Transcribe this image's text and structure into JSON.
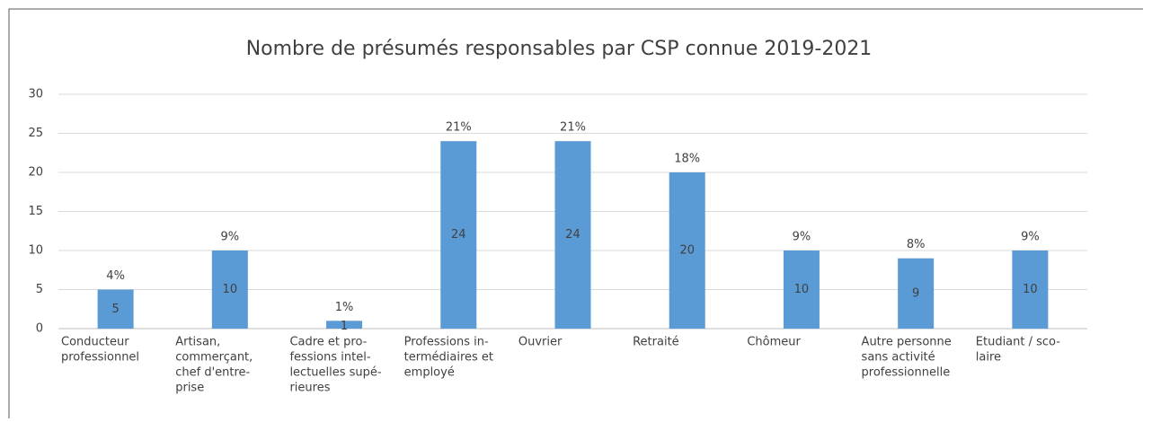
{
  "chart_data": {
    "type": "bar",
    "title": "Nombre de présumés responsables par CSP connue 2019-2021",
    "categories": [
      [
        "Conducteur",
        "professionnel"
      ],
      [
        "Artisan,",
        "commerçant,",
        "chef d'entre-",
        "prise"
      ],
      [
        "Cadre et pro-",
        "fessions intel-",
        "lectuelles supé-",
        "rieures"
      ],
      [
        "Professions in-",
        "termédiaires et",
        "employé"
      ],
      [
        "Ouvrier"
      ],
      [
        "Retraité"
      ],
      [
        "Chômeur"
      ],
      [
        "Autre personne",
        "sans activité",
        "professionnelle"
      ],
      [
        "Etudiant / sco-",
        "laire"
      ]
    ],
    "values": [
      5,
      10,
      1,
      24,
      24,
      20,
      10,
      9,
      10
    ],
    "percent": {
      "values": [
        4,
        9,
        1,
        21,
        21,
        18,
        9,
        8,
        9
      ],
      "value_labels": [
        "4%",
        "9%",
        "1%",
        "21%",
        "21%",
        "18%",
        "9%",
        "8%",
        "9%"
      ]
    },
    "color": "#5b9bd5",
    "ylim": [
      0,
      30
    ],
    "yticks": [
      0,
      5,
      10,
      15,
      20,
      25,
      30
    ],
    "grid": true
  }
}
